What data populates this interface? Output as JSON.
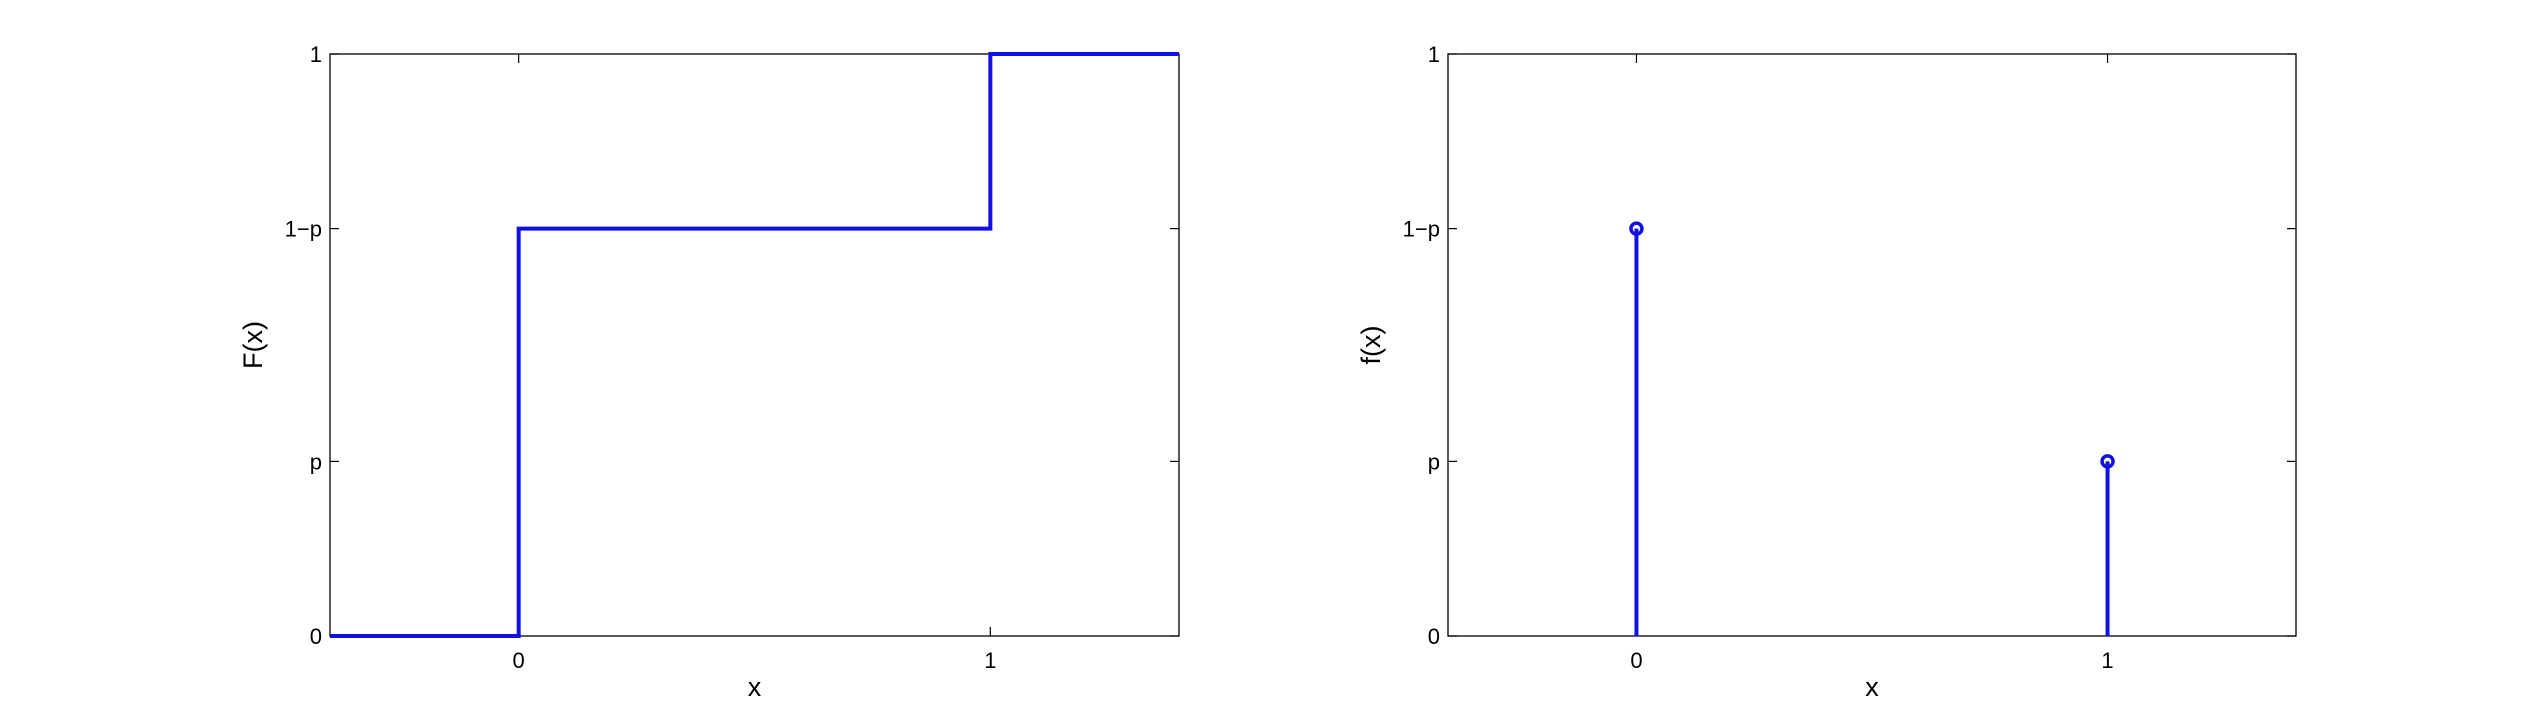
{
  "chart_data": [
    {
      "type": "line",
      "step": true,
      "xlabel": "x",
      "ylabel": "F(x)",
      "xlim": [
        -0.4,
        1.4
      ],
      "ylim": [
        0,
        1
      ],
      "xticks": [
        0,
        1
      ],
      "xtick_labels": [
        "0",
        "1"
      ],
      "yticks": [
        0,
        0.3,
        0.7,
        1
      ],
      "ytick_labels": [
        "0",
        "p",
        "1−p",
        "1"
      ],
      "series": [
        {
          "x": [
            -0.4,
            0,
            0,
            1,
            1,
            1.4
          ],
          "y": [
            0,
            0,
            0.7,
            0.7,
            1,
            1
          ]
        }
      ],
      "color": "#1010e0",
      "grid": false,
      "legend": "none"
    },
    {
      "type": "stem",
      "xlabel": "x",
      "ylabel": "f(x)",
      "xlim": [
        -0.4,
        1.4
      ],
      "ylim": [
        0,
        1
      ],
      "xticks": [
        0,
        1
      ],
      "xtick_labels": [
        "0",
        "1"
      ],
      "yticks": [
        0,
        0.3,
        0.7,
        1
      ],
      "ytick_labels": [
        "0",
        "p",
        "1−p",
        "1"
      ],
      "series": [
        {
          "x": [
            0,
            1
          ],
          "y": [
            0.7,
            0.3
          ]
        }
      ],
      "color": "#1010e0",
      "grid": false,
      "legend": "none"
    }
  ]
}
